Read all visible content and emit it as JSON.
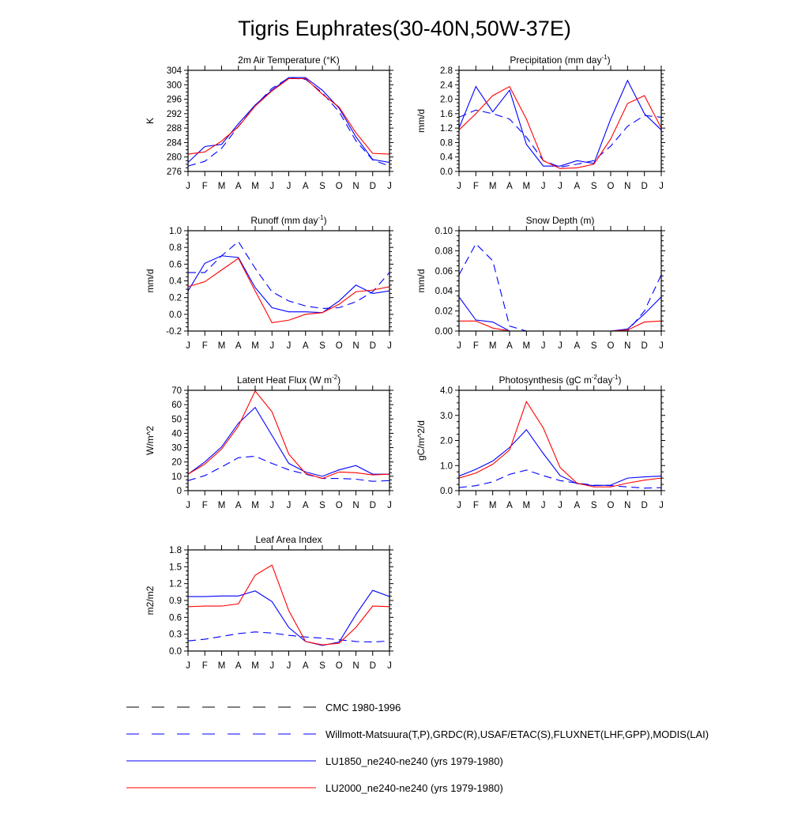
{
  "title": "Tigris Euphrates(30-40N,50W-37E)",
  "months": [
    "J",
    "F",
    "M",
    "A",
    "M",
    "J",
    "J",
    "A",
    "S",
    "O",
    "N",
    "D",
    "J"
  ],
  "colors": {
    "blue": "#0000ff",
    "red": "#ff0000",
    "black": "#000000"
  },
  "legend": [
    {
      "label": "CMC 1980-1996",
      "color": "#000000",
      "dash": "dashed"
    },
    {
      "label": "Willmott-Matsuura(T,P),GRDC(R),USAF/ETAC(S),FLUXNET(LHF,GPP),MODIS(LAI)",
      "color": "#0000ff",
      "dash": "dashed"
    },
    {
      "label": "LU1850_ne240-ne240 (yrs 1979-1980)",
      "color": "#0000ff",
      "dash": "solid"
    },
    {
      "label": "LU2000_ne240-ne240 (yrs 1979-1980)",
      "color": "#ff0000",
      "dash": "solid"
    }
  ],
  "chart_data": [
    {
      "type": "line",
      "title": "2m Air Temperature",
      "title_unit": "(°K)",
      "ylabel": "K",
      "ylim": [
        276,
        304
      ],
      "yticks": [
        276,
        280,
        284,
        288,
        292,
        296,
        300,
        304
      ],
      "ytick_labels": [
        "276",
        "280",
        "284",
        "288",
        "292",
        "296",
        "300",
        "304"
      ],
      "series": [
        {
          "name": "Willmott-Matsuura(T,P),GRDC(R),USAF/ETAC(S),FLUXNET(LHF,GPP),MODIS(LAI)",
          "color": "#0000ff",
          "dash": "dashed",
          "values": [
            277.5,
            278.8,
            282.4,
            288.5,
            294.2,
            299.0,
            301.9,
            301.5,
            297.8,
            292.5,
            284.5,
            279.2,
            277.5
          ]
        },
        {
          "name": "LU1850_ne240-ne240 (yrs 1979-1980)",
          "color": "#0000ff",
          "dash": "solid",
          "values": [
            278.5,
            282.9,
            283.5,
            289.2,
            294.4,
            298.5,
            302.0,
            302.0,
            298.5,
            293.5,
            285.6,
            279.3,
            278.5
          ]
        },
        {
          "name": "LU2000_ne240-ne240 (yrs 1979-1980)",
          "color": "#ff0000",
          "dash": "solid",
          "values": [
            280.8,
            281.4,
            284.4,
            288.4,
            294.1,
            298.3,
            301.7,
            301.7,
            297.4,
            293.8,
            286.7,
            281.0,
            280.8
          ]
        }
      ]
    },
    {
      "type": "line",
      "title": "Precipitation",
      "title_unit": "(mm day",
      "title_sup": "-1",
      "title_end": ")",
      "ylabel": "mm/d",
      "ylim": [
        0,
        2.8
      ],
      "yticks": [
        0,
        0.4,
        0.8,
        1.2,
        1.6,
        2.0,
        2.4,
        2.8
      ],
      "ytick_labels": [
        "0.0",
        "0.4",
        "0.8",
        "1.2",
        "1.6",
        "2.0",
        "2.4",
        "2.8"
      ],
      "series": [
        {
          "name": "Willmott-Matsuura(T,P),GRDC(R),USAF/ETAC(S),FLUXNET(LHF,GPP),MODIS(LAI)",
          "color": "#0000ff",
          "dash": "dashed",
          "values": [
            1.5,
            1.7,
            1.6,
            1.45,
            0.95,
            0.3,
            0.12,
            0.2,
            0.3,
            0.7,
            1.25,
            1.55,
            1.5
          ]
        },
        {
          "name": "LU1850_ne240-ne240 (yrs 1979-1980)",
          "color": "#0000ff",
          "dash": "solid",
          "values": [
            1.2,
            2.35,
            1.65,
            2.25,
            0.75,
            0.15,
            0.15,
            0.3,
            0.22,
            1.45,
            2.52,
            1.6,
            1.15
          ]
        },
        {
          "name": "LU2000_ne240-ne240 (yrs 1979-1980)",
          "color": "#ff0000",
          "dash": "solid",
          "values": [
            1.15,
            1.6,
            2.1,
            2.35,
            1.45,
            0.3,
            0.08,
            0.1,
            0.2,
            0.9,
            1.88,
            2.1,
            1.2
          ]
        }
      ]
    },
    {
      "type": "line",
      "title": "Runoff",
      "title_unit": "(mm day",
      "title_sup": "-1",
      "title_end": ")",
      "ylabel": "mm/d",
      "ylim": [
        -0.2,
        1.0
      ],
      "yticks": [
        -0.2,
        0,
        0.2,
        0.4,
        0.6,
        0.8,
        1.0
      ],
      "ytick_labels": [
        "-0.2",
        "0.0",
        "0.2",
        "0.4",
        "0.6",
        "0.8",
        "1.0"
      ],
      "series": [
        {
          "name": "Willmott-Matsuura(T,P),GRDC(R),USAF/ETAC(S),FLUXNET(LHF,GPP),MODIS(LAI)",
          "color": "#0000ff",
          "dash": "dashed",
          "values": [
            0.5,
            0.5,
            0.7,
            0.87,
            0.55,
            0.27,
            0.16,
            0.1,
            0.07,
            0.08,
            0.15,
            0.27,
            0.5
          ]
        },
        {
          "name": "LU1850_ne240-ne240 (yrs 1979-1980)",
          "color": "#0000ff",
          "dash": "solid",
          "values": [
            0.28,
            0.61,
            0.7,
            0.68,
            0.32,
            0.08,
            0.03,
            0.03,
            0.02,
            0.16,
            0.35,
            0.25,
            0.28
          ]
        },
        {
          "name": "LU2000_ne240-ne240 (yrs 1979-1980)",
          "color": "#ff0000",
          "dash": "solid",
          "values": [
            0.33,
            0.39,
            0.53,
            0.67,
            0.28,
            -0.1,
            -0.07,
            0.0,
            0.02,
            0.12,
            0.27,
            0.29,
            0.33
          ]
        }
      ]
    },
    {
      "type": "line",
      "title": "Snow Depth (m)",
      "ylabel": "mm/d",
      "ylim": [
        0,
        0.1
      ],
      "yticks": [
        0,
        0.02,
        0.04,
        0.06,
        0.08,
        0.1
      ],
      "ytick_labels": [
        "0.00",
        "0.02",
        "0.04",
        "0.06",
        "0.08",
        "0.10"
      ],
      "series": [
        {
          "name": "CMC 1980-1996",
          "color": "#000000",
          "dash": "dashed",
          "values": [
            0,
            0,
            0,
            0,
            0,
            0,
            0,
            0,
            0,
            0,
            0,
            0,
            0
          ]
        },
        {
          "name": "Willmott-Matsuura(T,P),GRDC(R),USAF/ETAC(S),FLUXNET(LHF,GPP),MODIS(LAI)",
          "color": "#0000ff",
          "dash": "dashed",
          "values": [
            0.056,
            0.087,
            0.07,
            0.005,
            0.0,
            0.0,
            0.0,
            0.0,
            0.0,
            0.0,
            0.0,
            0.02,
            0.056
          ]
        },
        {
          "name": "LU1850_ne240-ne240 (yrs 1979-1980)",
          "color": "#0000ff",
          "dash": "solid",
          "values": [
            0.034,
            0.011,
            0.009,
            0.0,
            0.0,
            0.0,
            0.0,
            0.0,
            0.0,
            0.0,
            0.002,
            0.017,
            0.034
          ]
        },
        {
          "name": "LU2000_ne240-ne240 (yrs 1979-1980)",
          "color": "#ff0000",
          "dash": "solid",
          "values": [
            0.01,
            0.01,
            0.003,
            0.0,
            0.0,
            0.0,
            0.0,
            0.0,
            0.0,
            0.0,
            0.001,
            0.009,
            0.01
          ]
        }
      ]
    },
    {
      "type": "line",
      "title": "Latent Heat Flux",
      "title_unit": "(W m",
      "title_sup": "-2",
      "title_end": ")",
      "ylabel": "W/m^2",
      "ylim": [
        0,
        70
      ],
      "yticks": [
        0,
        10,
        20,
        30,
        40,
        50,
        60,
        70
      ],
      "ytick_labels": [
        "0",
        "10",
        "20",
        "30",
        "40",
        "50",
        "60",
        "70"
      ],
      "series": [
        {
          "name": "Willmott-Matsuura(T,P),GRDC(R),USAF/ETAC(S),FLUXNET(LHF,GPP),MODIS(LAI)",
          "color": "#0000ff",
          "dash": "dashed",
          "values": [
            7,
            10.5,
            16.5,
            23,
            24,
            19,
            14.5,
            11.5,
            8.5,
            8.5,
            8,
            6.5,
            7
          ]
        },
        {
          "name": "LU1850_ne240-ne240 (yrs 1979-1980)",
          "color": "#0000ff",
          "dash": "solid",
          "values": [
            11.5,
            20,
            30.5,
            47,
            58,
            38.5,
            19,
            13,
            10,
            14.5,
            17.5,
            11.5,
            11.5
          ]
        },
        {
          "name": "LU2000_ne240-ne240 (yrs 1979-1980)",
          "color": "#ff0000",
          "dash": "solid",
          "values": [
            11.5,
            18.5,
            29,
            45,
            69.5,
            55,
            25.5,
            12,
            8.5,
            13,
            12.5,
            11,
            11.5
          ]
        }
      ]
    },
    {
      "type": "line",
      "title": "Photosynthesis",
      "title_unit": "(gC m",
      "title_sup": "-2",
      "title_mid": "day",
      "title_sup2": "-1",
      "title_end": ")",
      "ylabel": "gC/m^2/d",
      "ylim": [
        0,
        4.0
      ],
      "yticks": [
        0,
        1.0,
        2.0,
        3.0,
        4.0
      ],
      "ytick_labels": [
        "0.0",
        "1.0",
        "2.0",
        "3.0",
        "4.0"
      ],
      "series": [
        {
          "name": "Willmott-Matsuura(T,P),GRDC(R),USAF/ETAC(S),FLUXNET(LHF,GPP),MODIS(LAI)",
          "color": "#0000ff",
          "dash": "dashed",
          "values": [
            0.12,
            0.2,
            0.35,
            0.65,
            0.82,
            0.6,
            0.4,
            0.3,
            0.22,
            0.2,
            0.15,
            0.1,
            0.12
          ]
        },
        {
          "name": "LU1850_ne240-ne240 (yrs 1979-1980)",
          "color": "#0000ff",
          "dash": "solid",
          "values": [
            0.58,
            0.85,
            1.18,
            1.72,
            2.43,
            1.48,
            0.6,
            0.28,
            0.2,
            0.22,
            0.5,
            0.55,
            0.58
          ]
        },
        {
          "name": "LU2000_ne240-ne240 (yrs 1979-1980)",
          "color": "#ff0000",
          "dash": "solid",
          "values": [
            0.5,
            0.7,
            1.05,
            1.62,
            3.55,
            2.5,
            0.92,
            0.3,
            0.15,
            0.15,
            0.3,
            0.42,
            0.5
          ]
        }
      ]
    },
    {
      "type": "line",
      "title": "Leaf Area Index",
      "ylabel": "m2/m2",
      "ylim": [
        0,
        1.8
      ],
      "yticks": [
        0,
        0.3,
        0.6,
        0.9,
        1.2,
        1.5,
        1.8
      ],
      "ytick_labels": [
        "0.0",
        "0.3",
        "0.6",
        "0.9",
        "1.2",
        "1.5",
        "1.8"
      ],
      "series": [
        {
          "name": "Willmott-Matsuura(T,P),GRDC(R),USAF/ETAC(S),FLUXNET(LHF,GPP),MODIS(LAI)",
          "color": "#0000ff",
          "dash": "dashed",
          "values": [
            0.18,
            0.21,
            0.26,
            0.31,
            0.34,
            0.32,
            0.28,
            0.25,
            0.23,
            0.2,
            0.17,
            0.16,
            0.18
          ]
        },
        {
          "name": "LU1850_ne240-ne240 (yrs 1979-1980)",
          "color": "#0000ff",
          "dash": "solid",
          "values": [
            0.97,
            0.97,
            0.98,
            0.98,
            1.07,
            0.88,
            0.42,
            0.17,
            0.1,
            0.16,
            0.65,
            1.08,
            0.97
          ]
        },
        {
          "name": "LU2000_ne240-ne240 (yrs 1979-1980)",
          "color": "#ff0000",
          "dash": "solid",
          "values": [
            0.79,
            0.8,
            0.8,
            0.84,
            1.35,
            1.53,
            0.72,
            0.17,
            0.11,
            0.14,
            0.42,
            0.8,
            0.79
          ]
        }
      ]
    }
  ]
}
